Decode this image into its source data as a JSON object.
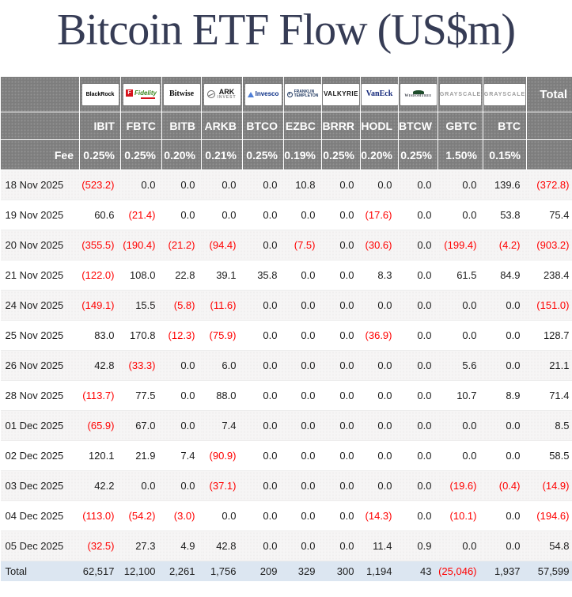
{
  "title": "Bitcoin ETF Flow (US$m)",
  "colors": {
    "title_text": "#363c55",
    "header_bg": "#7d7d7d",
    "header_text": "#ffffff",
    "negative_value": "#ff0000",
    "positive_value": "#1d1d1d",
    "total_row_bg": "#dce6f1",
    "odd_row_bg": "#f6f5f5"
  },
  "chart_data": {
    "type": "table",
    "title": "Bitcoin ETF Flow (US$m)",
    "fee_row_label": "Fee",
    "total_col_label": "Total",
    "total_row_label": "Total",
    "funds": [
      {
        "brand": "BlackRock",
        "logo_icon": "blackrock-logo",
        "ticker": "IBIT",
        "fee": "0.25%"
      },
      {
        "brand": "Fidelity",
        "logo_icon": "fidelity-logo",
        "ticker": "FBTC",
        "fee": "0.25%"
      },
      {
        "brand": "Bitwise",
        "logo_icon": "bitwise-logo",
        "ticker": "BITB",
        "fee": "0.20%"
      },
      {
        "brand": "ARK INVEST",
        "logo_icon": "ark-invest-logo",
        "ticker": "ARKB",
        "fee": "0.21%"
      },
      {
        "brand": "Invesco",
        "logo_icon": "invesco-logo",
        "ticker": "BTCO",
        "fee": "0.25%"
      },
      {
        "brand": "FRANKLIN TEMPLETON",
        "logo_icon": "franklin-templeton-logo",
        "ticker": "EZBC",
        "fee": "0.19%"
      },
      {
        "brand": "VALKYRIE",
        "logo_icon": "valkyrie-logo",
        "ticker": "BRRR",
        "fee": "0.25%"
      },
      {
        "brand": "VanEck",
        "logo_icon": "vaneck-logo",
        "ticker": "HODL",
        "fee": "0.20%"
      },
      {
        "brand": "WisdomTree",
        "logo_icon": "wisdomtree-logo",
        "ticker": "BTCW",
        "fee": "0.25%"
      },
      {
        "brand": "GRAYSCALE",
        "logo_icon": "grayscale-logo",
        "ticker": "GBTC",
        "fee": "1.50%"
      },
      {
        "brand": "GRAYSCALE",
        "logo_icon": "grayscale-logo",
        "ticker": "BTC",
        "fee": "0.15%"
      }
    ],
    "rows": [
      {
        "date": "18 Nov 2025",
        "values": [
          "(523.2)",
          "0.0",
          "0.0",
          "0.0",
          "0.0",
          "10.8",
          "0.0",
          "0.0",
          "0.0",
          "0.0",
          "139.6",
          "(372.8)"
        ]
      },
      {
        "date": "19 Nov 2025",
        "values": [
          "60.6",
          "(21.4)",
          "0.0",
          "0.0",
          "0.0",
          "0.0",
          "0.0",
          "(17.6)",
          "0.0",
          "0.0",
          "53.8",
          "75.4"
        ]
      },
      {
        "date": "20 Nov 2025",
        "values": [
          "(355.5)",
          "(190.4)",
          "(21.2)",
          "(94.4)",
          "0.0",
          "(7.5)",
          "0.0",
          "(30.6)",
          "0.0",
          "(199.4)",
          "(4.2)",
          "(903.2)"
        ]
      },
      {
        "date": "21 Nov 2025",
        "values": [
          "(122.0)",
          "108.0",
          "22.8",
          "39.1",
          "35.8",
          "0.0",
          "0.0",
          "8.3",
          "0.0",
          "61.5",
          "84.9",
          "238.4"
        ]
      },
      {
        "date": "24 Nov 2025",
        "values": [
          "(149.1)",
          "15.5",
          "(5.8)",
          "(11.6)",
          "0.0",
          "0.0",
          "0.0",
          "0.0",
          "0.0",
          "0.0",
          "0.0",
          "(151.0)"
        ]
      },
      {
        "date": "25 Nov 2025",
        "values": [
          "83.0",
          "170.8",
          "(12.3)",
          "(75.9)",
          "0.0",
          "0.0",
          "0.0",
          "(36.9)",
          "0.0",
          "0.0",
          "0.0",
          "128.7"
        ]
      },
      {
        "date": "26 Nov 2025",
        "values": [
          "42.8",
          "(33.3)",
          "0.0",
          "6.0",
          "0.0",
          "0.0",
          "0.0",
          "0.0",
          "0.0",
          "5.6",
          "0.0",
          "21.1"
        ]
      },
      {
        "date": "28 Nov 2025",
        "values": [
          "(113.7)",
          "77.5",
          "0.0",
          "88.0",
          "0.0",
          "0.0",
          "0.0",
          "0.0",
          "0.0",
          "10.7",
          "8.9",
          "71.4"
        ]
      },
      {
        "date": "01 Dec 2025",
        "values": [
          "(65.9)",
          "67.0",
          "0.0",
          "7.4",
          "0.0",
          "0.0",
          "0.0",
          "0.0",
          "0.0",
          "0.0",
          "0.0",
          "8.5"
        ]
      },
      {
        "date": "02 Dec 2025",
        "values": [
          "120.1",
          "21.9",
          "7.4",
          "(90.9)",
          "0.0",
          "0.0",
          "0.0",
          "0.0",
          "0.0",
          "0.0",
          "0.0",
          "58.5"
        ]
      },
      {
        "date": "03 Dec 2025",
        "values": [
          "42.2",
          "0.0",
          "0.0",
          "(37.1)",
          "0.0",
          "0.0",
          "0.0",
          "0.0",
          "0.0",
          "(19.6)",
          "(0.4)",
          "(14.9)"
        ]
      },
      {
        "date": "04 Dec 2025",
        "values": [
          "(113.0)",
          "(54.2)",
          "(3.0)",
          "0.0",
          "0.0",
          "0.0",
          "0.0",
          "(14.3)",
          "0.0",
          "(10.1)",
          "0.0",
          "(194.6)"
        ]
      },
      {
        "date": "05 Dec 2025",
        "values": [
          "(32.5)",
          "27.3",
          "4.9",
          "42.8",
          "0.0",
          "0.0",
          "0.0",
          "11.4",
          "0.9",
          "0.0",
          "0.0",
          "54.8"
        ]
      }
    ],
    "total_row": {
      "label": "Total",
      "values": [
        "62,517",
        "12,100",
        "2,261",
        "1,756",
        "209",
        "329",
        "300",
        "1,194",
        "43",
        "(25,046)",
        "1,937",
        "57,599"
      ]
    }
  }
}
